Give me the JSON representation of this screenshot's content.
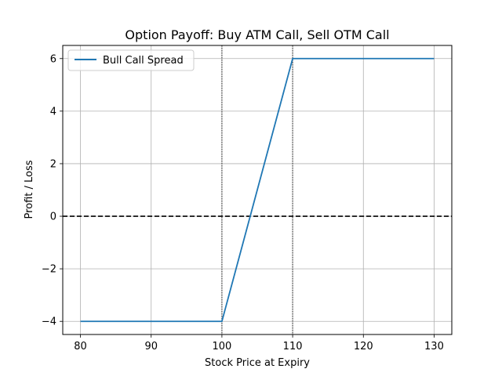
{
  "chart_data": {
    "type": "line",
    "title": "Option Payoff: Buy ATM Call, Sell OTM Call",
    "xlabel": "Stock Price at Expiry",
    "ylabel": "Profit / Loss",
    "xlim": [
      77.5,
      132.5
    ],
    "ylim": [
      -4.5,
      6.5
    ],
    "xticks": [
      80,
      90,
      100,
      110,
      120,
      130
    ],
    "yticks": [
      -4,
      -2,
      0,
      2,
      4,
      6
    ],
    "xtick_labels": [
      "80",
      "90",
      "100",
      "110",
      "120",
      "130"
    ],
    "ytick_labels": [
      "−4",
      "−2",
      "0",
      "2",
      "4",
      "6"
    ],
    "grid": true,
    "legend_position": "top-left",
    "series": [
      {
        "name": "Bull Call Spread",
        "color": "#1f77b4",
        "x": [
          80,
          100,
          100.5,
          109.5,
          110,
          130
        ],
        "y": [
          -4,
          -4,
          -3.5,
          5.5,
          6,
          6
        ]
      }
    ],
    "reference_lines": [
      {
        "orientation": "horizontal",
        "value": 0,
        "style": "dashed",
        "color": "#000000"
      },
      {
        "orientation": "vertical",
        "value": 100,
        "style": "dotted",
        "color": "#555555"
      },
      {
        "orientation": "vertical",
        "value": 110,
        "style": "dotted",
        "color": "#555555"
      }
    ]
  }
}
